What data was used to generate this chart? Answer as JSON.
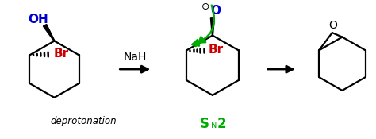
{
  "bg_color": "#ffffff",
  "green_color": "#00aa00",
  "blue_color": "#0000cc",
  "red_color": "#cc0000",
  "black_color": "#000000",
  "reagent_NaH": "NaH",
  "label_deprotonation": "deprotonation",
  "label_SN2_S": "S",
  "label_SN2_N": "N",
  "label_SN2_2": "2",
  "label_OH": "OH",
  "label_Br1": "Br",
  "label_Br2": "Br",
  "label_O_neg": "O",
  "label_O_epoxide": "O",
  "label_minus": "⊖",
  "figsize": [
    4.74,
    1.75
  ],
  "dpi": 100
}
